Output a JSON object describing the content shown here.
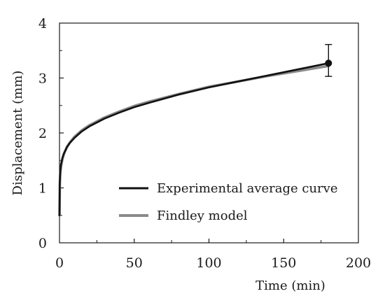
{
  "chart_data": {
    "type": "line",
    "xlabel": "Time (min)",
    "ylabel": "Displacement (mm)",
    "xlim": [
      0,
      200
    ],
    "ylim": [
      0,
      4
    ],
    "x_ticks": [
      0,
      50,
      100,
      150,
      200
    ],
    "y_ticks": [
      0,
      1,
      2,
      3,
      4
    ],
    "x_tick_labels": [
      "0",
      "50",
      "100",
      "150",
      "200"
    ],
    "y_tick_labels": [
      "0",
      "1",
      "2",
      "3",
      "4"
    ],
    "grid": false,
    "legend_position": "bottom-right",
    "series": [
      {
        "name": "Experimental average curve",
        "color": "#111111",
        "x": [
          0,
          0.2,
          0.5,
          1,
          2,
          3,
          5,
          7,
          10,
          15,
          20,
          30,
          40,
          50,
          60,
          80,
          100,
          120,
          140,
          160,
          180
        ],
        "y": [
          0.5,
          1.12,
          1.3,
          1.42,
          1.55,
          1.63,
          1.74,
          1.82,
          1.91,
          2.03,
          2.12,
          2.26,
          2.37,
          2.47,
          2.55,
          2.7,
          2.83,
          2.94,
          3.05,
          3.16,
          3.27
        ]
      },
      {
        "name": "Findley model",
        "color": "#8a8a8a",
        "x": [
          0,
          0.2,
          0.5,
          1,
          2,
          3,
          5,
          7,
          10,
          15,
          20,
          30,
          40,
          50,
          60,
          80,
          100,
          120,
          140,
          160,
          180
        ],
        "y": [
          0.5,
          1.05,
          1.25,
          1.39,
          1.53,
          1.62,
          1.75,
          1.83,
          1.93,
          2.05,
          2.14,
          2.28,
          2.39,
          2.49,
          2.57,
          2.71,
          2.84,
          2.94,
          3.04,
          3.13,
          3.22
        ]
      }
    ],
    "error_bar": {
      "x": 180,
      "y": 3.27,
      "ymin": 3.03,
      "ymax": 3.61,
      "marker": "circle"
    }
  }
}
